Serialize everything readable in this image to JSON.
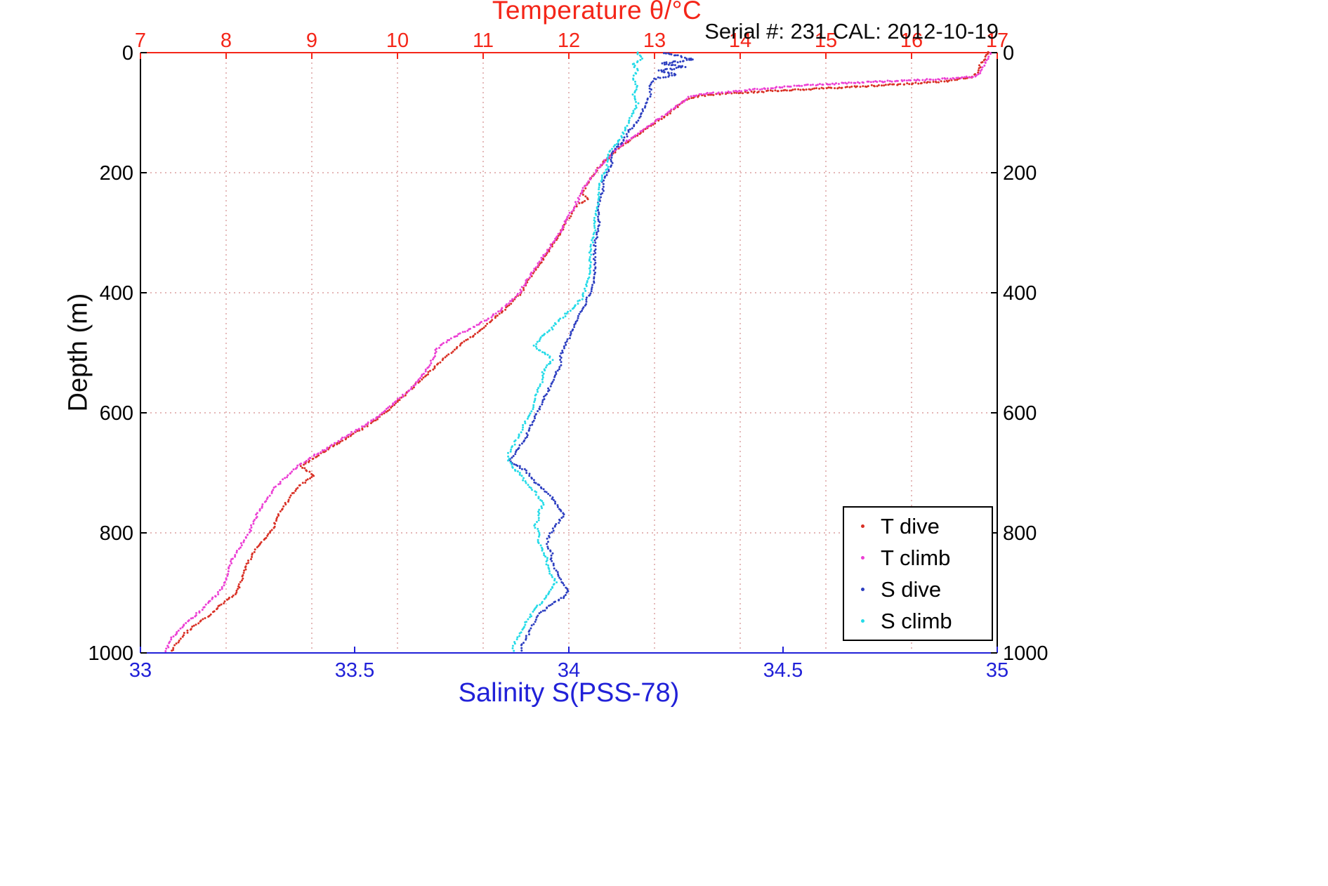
{
  "chart_data": {
    "type": "scatter",
    "title": "Temperature θ/°C",
    "title_color": "#f42619",
    "annotation": "Serial #: 231  CAL: 2012-10-19",
    "ylabel": "Depth (m)",
    "xlabel_bottom": "Salinity S(PSS-78)",
    "grid": true,
    "grid_color": "#cc7777",
    "legend_position": "bottom-right",
    "temp_axis": {
      "label": "Temperature θ/°C",
      "min": 7,
      "max": 17,
      "ticks": [
        7,
        8,
        9,
        10,
        11,
        12,
        13,
        14,
        15,
        16,
        17
      ],
      "color": "#f42619"
    },
    "sal_axis": {
      "label": "Salinity S(PSS-78)",
      "min": 33,
      "max": 35,
      "ticks": [
        33,
        33.5,
        34,
        34.5,
        35
      ],
      "color": "#2121d8"
    },
    "depth_axis": {
      "label": "Depth (m)",
      "min": 0,
      "max": 1000,
      "ticks": [
        0,
        200,
        400,
        600,
        800,
        1000
      ],
      "color": "#000000"
    },
    "series": [
      {
        "name": "T dive",
        "axis": "temp",
        "color": "#d93025",
        "points": [
          [
            0,
            16.9
          ],
          [
            10,
            16.85
          ],
          [
            20,
            16.8
          ],
          [
            30,
            16.78
          ],
          [
            40,
            16.72
          ],
          [
            47,
            16.45
          ],
          [
            52,
            15.95
          ],
          [
            56,
            15.45
          ],
          [
            60,
            14.9
          ],
          [
            64,
            14.35
          ],
          [
            68,
            13.85
          ],
          [
            72,
            13.52
          ],
          [
            80,
            13.35
          ],
          [
            90,
            13.26
          ],
          [
            100,
            13.18
          ],
          [
            115,
            13.02
          ],
          [
            130,
            12.88
          ],
          [
            145,
            12.72
          ],
          [
            160,
            12.57
          ],
          [
            175,
            12.46
          ],
          [
            190,
            12.36
          ],
          [
            205,
            12.28
          ],
          [
            220,
            12.21
          ],
          [
            235,
            12.15
          ],
          [
            245,
            12.22
          ],
          [
            253,
            12.1
          ],
          [
            266,
            12.04
          ],
          [
            281,
            11.97
          ],
          [
            300,
            11.9
          ],
          [
            320,
            11.81
          ],
          [
            340,
            11.72
          ],
          [
            360,
            11.62
          ],
          [
            380,
            11.52
          ],
          [
            400,
            11.44
          ],
          [
            415,
            11.34
          ],
          [
            430,
            11.23
          ],
          [
            445,
            11.11
          ],
          [
            460,
            10.99
          ],
          [
            475,
            10.85
          ],
          [
            490,
            10.7
          ],
          [
            505,
            10.58
          ],
          [
            520,
            10.46
          ],
          [
            535,
            10.35
          ],
          [
            550,
            10.24
          ],
          [
            565,
            10.12
          ],
          [
            580,
            10.01
          ],
          [
            595,
            9.9
          ],
          [
            610,
            9.76
          ],
          [
            625,
            9.6
          ],
          [
            640,
            9.43
          ],
          [
            655,
            9.26
          ],
          [
            670,
            9.09
          ],
          [
            681,
            8.96
          ],
          [
            689,
            8.88
          ],
          [
            697,
            8.95
          ],
          [
            705,
            9.02
          ],
          [
            713,
            8.94
          ],
          [
            722,
            8.85
          ],
          [
            735,
            8.78
          ],
          [
            750,
            8.7
          ],
          [
            765,
            8.63
          ],
          [
            780,
            8.58
          ],
          [
            795,
            8.54
          ],
          [
            810,
            8.45
          ],
          [
            825,
            8.36
          ],
          [
            840,
            8.29
          ],
          [
            855,
            8.24
          ],
          [
            870,
            8.2
          ],
          [
            885,
            8.16
          ],
          [
            900,
            8.12
          ],
          [
            912,
            8.0
          ],
          [
            925,
            7.9
          ],
          [
            940,
            7.78
          ],
          [
            955,
            7.63
          ],
          [
            970,
            7.5
          ],
          [
            985,
            7.42
          ],
          [
            1000,
            7.35
          ]
        ]
      },
      {
        "name": "T climb",
        "axis": "temp",
        "color": "#ec3fd4",
        "points": [
          [
            0,
            16.92
          ],
          [
            12,
            16.88
          ],
          [
            24,
            16.84
          ],
          [
            34,
            16.8
          ],
          [
            40,
            16.72
          ],
          [
            44,
            16.35
          ],
          [
            47,
            15.85
          ],
          [
            50,
            15.35
          ],
          [
            53,
            14.95
          ],
          [
            56,
            14.6
          ],
          [
            59,
            14.35
          ],
          [
            62,
            14.12
          ],
          [
            65,
            13.9
          ],
          [
            68,
            13.62
          ],
          [
            72,
            13.42
          ],
          [
            85,
            13.3
          ],
          [
            100,
            13.16
          ],
          [
            115,
            13.0
          ],
          [
            130,
            12.86
          ],
          [
            145,
            12.7
          ],
          [
            160,
            12.56
          ],
          [
            175,
            12.45
          ],
          [
            190,
            12.36
          ],
          [
            205,
            12.28
          ],
          [
            220,
            12.2
          ],
          [
            235,
            12.14
          ],
          [
            250,
            12.09
          ],
          [
            265,
            12.03
          ],
          [
            282,
            11.96
          ],
          [
            300,
            11.9
          ],
          [
            320,
            11.8
          ],
          [
            340,
            11.7
          ],
          [
            360,
            11.6
          ],
          [
            380,
            11.51
          ],
          [
            400,
            11.42
          ],
          [
            415,
            11.31
          ],
          [
            430,
            11.19
          ],
          [
            444,
            11.05
          ],
          [
            456,
            10.9
          ],
          [
            466,
            10.76
          ],
          [
            476,
            10.63
          ],
          [
            486,
            10.52
          ],
          [
            496,
            10.45
          ],
          [
            508,
            10.42
          ],
          [
            520,
            10.38
          ],
          [
            532,
            10.32
          ],
          [
            545,
            10.25
          ],
          [
            560,
            10.15
          ],
          [
            575,
            10.03
          ],
          [
            590,
            9.92
          ],
          [
            605,
            9.79
          ],
          [
            620,
            9.62
          ],
          [
            635,
            9.45
          ],
          [
            650,
            9.28
          ],
          [
            665,
            9.1
          ],
          [
            678,
            8.95
          ],
          [
            688,
            8.84
          ],
          [
            700,
            8.76
          ],
          [
            712,
            8.66
          ],
          [
            725,
            8.57
          ],
          [
            740,
            8.49
          ],
          [
            755,
            8.42
          ],
          [
            770,
            8.36
          ],
          [
            785,
            8.31
          ],
          [
            800,
            8.27
          ],
          [
            815,
            8.2
          ],
          [
            830,
            8.13
          ],
          [
            845,
            8.07
          ],
          [
            860,
            8.03
          ],
          [
            875,
            8.0
          ],
          [
            890,
            7.96
          ],
          [
            902,
            7.9
          ],
          [
            915,
            7.8
          ],
          [
            930,
            7.7
          ],
          [
            945,
            7.57
          ],
          [
            960,
            7.46
          ],
          [
            975,
            7.37
          ],
          [
            988,
            7.32
          ],
          [
            1000,
            7.3
          ]
        ]
      },
      {
        "name": "S dive",
        "axis": "sal",
        "color": "#2c3ec0",
        "points": [
          [
            0,
            34.22
          ],
          [
            6,
            34.26
          ],
          [
            12,
            34.29
          ],
          [
            18,
            34.22
          ],
          [
            24,
            34.27
          ],
          [
            30,
            34.21
          ],
          [
            36,
            34.25
          ],
          [
            44,
            34.2
          ],
          [
            55,
            34.19
          ],
          [
            70,
            34.19
          ],
          [
            85,
            34.18
          ],
          [
            100,
            34.17
          ],
          [
            115,
            34.16
          ],
          [
            130,
            34.14
          ],
          [
            145,
            34.13
          ],
          [
            158,
            34.11
          ],
          [
            170,
            34.1
          ],
          [
            185,
            34.1
          ],
          [
            200,
            34.09
          ],
          [
            215,
            34.08
          ],
          [
            230,
            34.08
          ],
          [
            250,
            34.07
          ],
          [
            270,
            34.07
          ],
          [
            290,
            34.07
          ],
          [
            320,
            34.06
          ],
          [
            350,
            34.06
          ],
          [
            380,
            34.06
          ],
          [
            400,
            34.05
          ],
          [
            415,
            34.04
          ],
          [
            430,
            34.03
          ],
          [
            445,
            34.02
          ],
          [
            460,
            34.01
          ],
          [
            475,
            34.0
          ],
          [
            490,
            33.99
          ],
          [
            505,
            33.98
          ],
          [
            520,
            33.98
          ],
          [
            535,
            33.97
          ],
          [
            550,
            33.96
          ],
          [
            565,
            33.95
          ],
          [
            580,
            33.94
          ],
          [
            595,
            33.93
          ],
          [
            610,
            33.92
          ],
          [
            625,
            33.91
          ],
          [
            640,
            33.9
          ],
          [
            652,
            33.89
          ],
          [
            663,
            33.88
          ],
          [
            672,
            33.87
          ],
          [
            680,
            33.86
          ],
          [
            688,
            33.88
          ],
          [
            696,
            33.9
          ],
          [
            705,
            33.91
          ],
          [
            715,
            33.92
          ],
          [
            728,
            33.94
          ],
          [
            740,
            33.96
          ],
          [
            752,
            33.97
          ],
          [
            762,
            33.98
          ],
          [
            770,
            33.99
          ],
          [
            778,
            33.98
          ],
          [
            788,
            33.97
          ],
          [
            798,
            33.96
          ],
          [
            810,
            33.95
          ],
          [
            822,
            33.95
          ],
          [
            835,
            33.96
          ],
          [
            848,
            33.96
          ],
          [
            862,
            33.97
          ],
          [
            875,
            33.98
          ],
          [
            888,
            33.99
          ],
          [
            898,
            34.0
          ],
          [
            906,
            33.99
          ],
          [
            914,
            33.97
          ],
          [
            924,
            33.95
          ],
          [
            935,
            33.93
          ],
          [
            948,
            33.92
          ],
          [
            962,
            33.91
          ],
          [
            976,
            33.9
          ],
          [
            988,
            33.89
          ],
          [
            1000,
            33.89
          ]
        ]
      },
      {
        "name": "S climb",
        "axis": "sal",
        "color": "#25dbe8",
        "points": [
          [
            0,
            34.16
          ],
          [
            10,
            34.17
          ],
          [
            20,
            34.15
          ],
          [
            30,
            34.16
          ],
          [
            42,
            34.15
          ],
          [
            55,
            34.16
          ],
          [
            70,
            34.15
          ],
          [
            85,
            34.16
          ],
          [
            100,
            34.15
          ],
          [
            115,
            34.14
          ],
          [
            130,
            34.13
          ],
          [
            145,
            34.12
          ],
          [
            160,
            34.1
          ],
          [
            175,
            34.09
          ],
          [
            190,
            34.09
          ],
          [
            205,
            34.08
          ],
          [
            225,
            34.07
          ],
          [
            250,
            34.07
          ],
          [
            275,
            34.06
          ],
          [
            300,
            34.06
          ],
          [
            330,
            34.05
          ],
          [
            360,
            34.05
          ],
          [
            390,
            34.04
          ],
          [
            410,
            34.03
          ],
          [
            425,
            34.01
          ],
          [
            438,
            33.99
          ],
          [
            450,
            33.97
          ],
          [
            460,
            33.96
          ],
          [
            470,
            33.94
          ],
          [
            480,
            33.93
          ],
          [
            488,
            33.92
          ],
          [
            495,
            33.93
          ],
          [
            503,
            33.95
          ],
          [
            512,
            33.96
          ],
          [
            522,
            33.95
          ],
          [
            532,
            33.94
          ],
          [
            545,
            33.94
          ],
          [
            558,
            33.93
          ],
          [
            572,
            33.92
          ],
          [
            586,
            33.92
          ],
          [
            600,
            33.91
          ],
          [
            614,
            33.9
          ],
          [
            628,
            33.89
          ],
          [
            642,
            33.88
          ],
          [
            655,
            33.87
          ],
          [
            668,
            33.86
          ],
          [
            680,
            33.86
          ],
          [
            692,
            33.87
          ],
          [
            705,
            33.89
          ],
          [
            718,
            33.9
          ],
          [
            730,
            33.92
          ],
          [
            742,
            33.93
          ],
          [
            754,
            33.94
          ],
          [
            764,
            33.93
          ],
          [
            775,
            33.93
          ],
          [
            788,
            33.92
          ],
          [
            800,
            33.93
          ],
          [
            815,
            33.93
          ],
          [
            830,
            33.94
          ],
          [
            845,
            33.95
          ],
          [
            858,
            33.95
          ],
          [
            870,
            33.96
          ],
          [
            882,
            33.97
          ],
          [
            892,
            33.96
          ],
          [
            902,
            33.95
          ],
          [
            914,
            33.94
          ],
          [
            926,
            33.92
          ],
          [
            938,
            33.91
          ],
          [
            950,
            33.9
          ],
          [
            962,
            33.89
          ],
          [
            974,
            33.88
          ],
          [
            988,
            33.87
          ],
          [
            1000,
            33.87
          ]
        ]
      }
    ],
    "legend_entries": [
      "T dive",
      "T climb",
      "S dive",
      "S climb"
    ]
  }
}
